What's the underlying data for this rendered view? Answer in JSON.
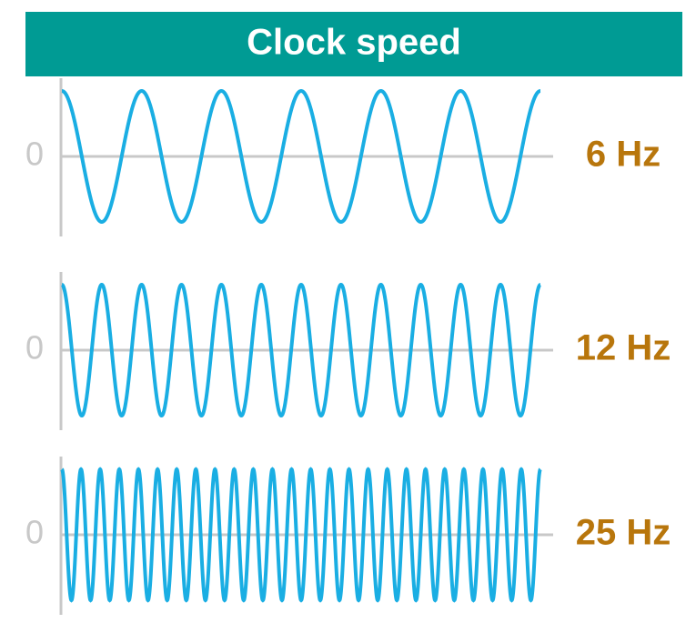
{
  "header": {
    "title": "Clock speed"
  },
  "waves": [
    {
      "axis_label": "0",
      "label": "6 Hz",
      "frequency": 6
    },
    {
      "axis_label": "0",
      "label": "12 Hz",
      "frequency": 12
    },
    {
      "axis_label": "0",
      "label": "25 Hz",
      "frequency": 25
    }
  ]
}
